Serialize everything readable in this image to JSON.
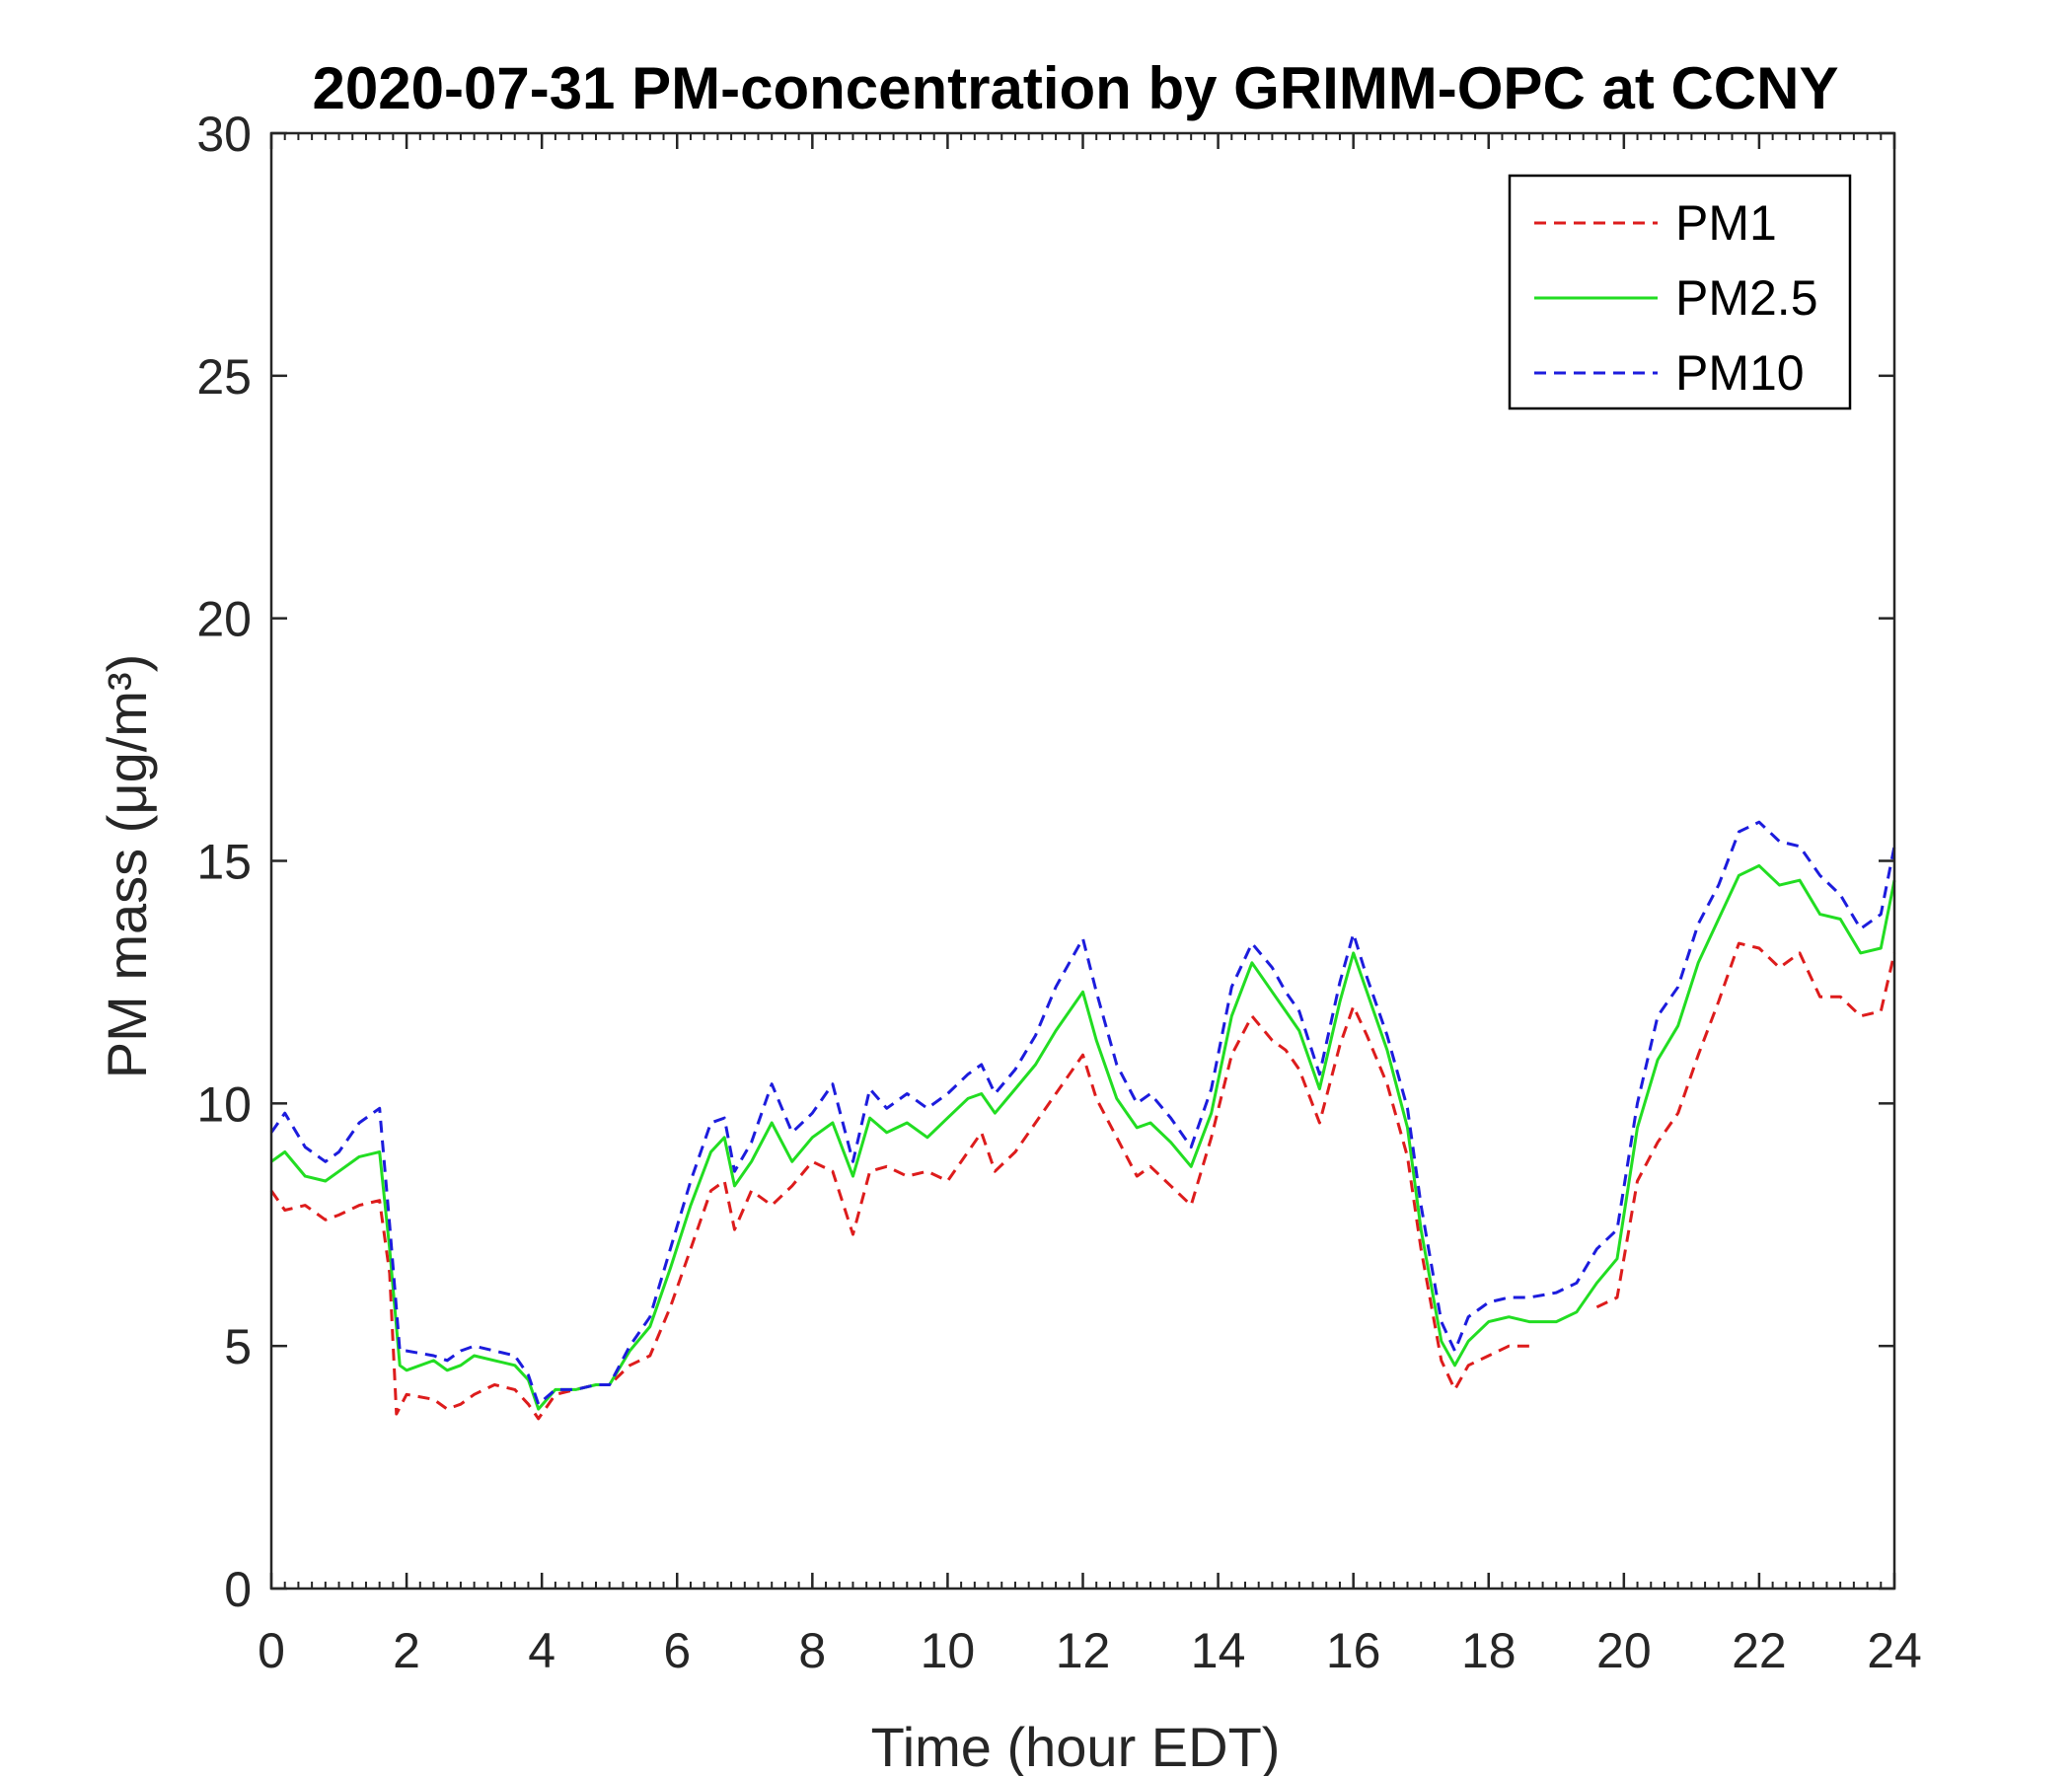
{
  "chart_data": {
    "type": "line",
    "title": "2020-07-31 PM-concentration by GRIMM-OPC at CCNY",
    "xlabel": "Time (hour EDT)",
    "ylabel": "PM mass (μg/m³)",
    "xlim": [
      0,
      24
    ],
    "ylim": [
      0,
      30
    ],
    "xticks": [
      "0",
      "2",
      "4",
      "6",
      "8",
      "10",
      "12",
      "14",
      "16",
      "18",
      "20",
      "22",
      "24"
    ],
    "yticks": [
      "0",
      "5",
      "10",
      "15",
      "20",
      "25",
      "30"
    ],
    "grid": false,
    "legend_position": "top-right",
    "series": [
      {
        "name": "PM1",
        "color": "#dd1c1c",
        "dash": "dashed",
        "x": [
          0,
          0.2,
          0.5,
          0.8,
          1.0,
          1.3,
          1.6,
          1.75,
          1.85,
          2.0,
          2.4,
          2.6,
          2.8,
          3.0,
          3.3,
          3.6,
          3.8,
          3.95,
          4.2,
          4.5,
          4.8,
          5.0,
          5.3,
          5.6,
          5.9,
          6.2,
          6.5,
          6.7,
          6.85,
          7.1,
          7.4,
          7.7,
          8.0,
          8.3,
          8.6,
          8.85,
          9.1,
          9.4,
          9.7,
          10.0,
          10.3,
          10.5,
          10.7,
          11.0,
          11.3,
          11.6,
          12.0,
          12.2,
          12.5,
          12.8,
          13.0,
          13.3,
          13.6,
          13.9,
          14.2,
          14.5,
          14.8,
          15.0,
          15.2,
          15.5,
          15.8,
          16.0,
          16.2,
          16.5,
          16.8,
          17.0,
          17.3,
          17.5,
          17.7,
          18.0,
          18.3,
          18.6,
          19.0,
          19.3,
          19.6,
          19.9,
          20.2,
          20.5,
          20.8,
          21.1,
          21.4,
          21.7,
          22.0,
          22.3,
          22.6,
          22.9,
          23.2,
          23.5,
          23.8,
          24.0
        ],
        "values": [
          8.2,
          7.8,
          7.9,
          7.6,
          7.7,
          7.9,
          8.0,
          6.5,
          3.6,
          4.0,
          3.9,
          3.7,
          3.8,
          4.0,
          4.2,
          4.1,
          3.8,
          3.5,
          4.0,
          4.1,
          4.2,
          4.2,
          4.6,
          4.8,
          5.8,
          7.0,
          8.2,
          8.4,
          7.4,
          8.2,
          7.9,
          8.3,
          8.8,
          8.6,
          7.3,
          8.6,
          8.7,
          8.5,
          8.6,
          8.4,
          9.0,
          9.4,
          8.6,
          9.0,
          9.6,
          10.2,
          11.0,
          10.1,
          9.3,
          8.5,
          8.7,
          8.3,
          7.9,
          9.3,
          11.0,
          11.8,
          11.3,
          11.1,
          10.7,
          9.6,
          11.2,
          12.0,
          11.4,
          10.4,
          8.9,
          7.0,
          4.7,
          4.1,
          4.6,
          4.8,
          5.0,
          5.0,
          null,
          null,
          5.8,
          6.0,
          8.4,
          9.2,
          9.8,
          11.0,
          12.1,
          13.3,
          13.2,
          12.8,
          13.1,
          12.2,
          12.2,
          11.8,
          11.9,
          13.1
        ]
      },
      {
        "name": "PM2.5",
        "color": "#22dd22",
        "dash": "solid",
        "x": [
          0,
          0.2,
          0.5,
          0.8,
          1.0,
          1.3,
          1.6,
          1.75,
          1.9,
          2.0,
          2.4,
          2.6,
          2.8,
          3.0,
          3.3,
          3.6,
          3.8,
          3.95,
          4.2,
          4.5,
          4.8,
          5.0,
          5.3,
          5.6,
          5.9,
          6.2,
          6.5,
          6.7,
          6.85,
          7.1,
          7.4,
          7.7,
          8.0,
          8.3,
          8.6,
          8.85,
          9.1,
          9.4,
          9.7,
          10.0,
          10.3,
          10.5,
          10.7,
          11.0,
          11.3,
          11.6,
          12.0,
          12.2,
          12.5,
          12.8,
          13.0,
          13.3,
          13.6,
          13.9,
          14.2,
          14.5,
          14.8,
          15.0,
          15.2,
          15.5,
          15.8,
          16.0,
          16.2,
          16.5,
          16.8,
          17.0,
          17.3,
          17.5,
          17.7,
          18.0,
          18.3,
          18.6,
          19.0,
          19.3,
          19.6,
          19.9,
          20.2,
          20.5,
          20.8,
          21.1,
          21.4,
          21.7,
          22.0,
          22.3,
          22.6,
          22.9,
          23.2,
          23.5,
          23.8,
          24.0
        ],
        "values": [
          8.8,
          9.0,
          8.5,
          8.4,
          8.6,
          8.9,
          9.0,
          7.0,
          4.6,
          4.5,
          4.7,
          4.5,
          4.6,
          4.8,
          4.7,
          4.6,
          4.3,
          3.7,
          4.1,
          4.1,
          4.2,
          4.2,
          4.9,
          5.4,
          6.6,
          7.9,
          9.0,
          9.3,
          8.3,
          8.8,
          9.6,
          8.8,
          9.3,
          9.6,
          8.5,
          9.7,
          9.4,
          9.6,
          9.3,
          9.7,
          10.1,
          10.2,
          9.8,
          10.3,
          10.8,
          11.5,
          12.3,
          11.3,
          10.1,
          9.5,
          9.6,
          9.2,
          8.7,
          9.8,
          11.8,
          12.9,
          12.3,
          11.9,
          11.5,
          10.3,
          12.1,
          13.1,
          12.3,
          11.1,
          9.5,
          7.4,
          5.1,
          4.6,
          5.1,
          5.5,
          5.6,
          5.5,
          5.5,
          5.7,
          6.3,
          6.8,
          9.5,
          10.9,
          11.6,
          12.9,
          13.8,
          14.7,
          14.9,
          14.5,
          14.6,
          13.9,
          13.8,
          13.1,
          13.2,
          14.6
        ]
      },
      {
        "name": "PM10",
        "color": "#1c1cdd",
        "dash": "dashed",
        "x": [
          0,
          0.2,
          0.5,
          0.8,
          1.0,
          1.3,
          1.6,
          1.75,
          1.9,
          2.0,
          2.4,
          2.6,
          2.8,
          3.0,
          3.3,
          3.6,
          3.8,
          3.95,
          4.2,
          4.5,
          4.8,
          5.0,
          5.3,
          5.6,
          5.9,
          6.2,
          6.5,
          6.7,
          6.85,
          7.1,
          7.4,
          7.7,
          8.0,
          8.3,
          8.6,
          8.85,
          9.1,
          9.4,
          9.7,
          10.0,
          10.3,
          10.5,
          10.7,
          11.0,
          11.3,
          11.6,
          12.0,
          12.2,
          12.5,
          12.8,
          13.0,
          13.3,
          13.6,
          13.9,
          14.2,
          14.5,
          14.8,
          15.0,
          15.2,
          15.5,
          15.8,
          16.0,
          16.2,
          16.5,
          16.8,
          17.0,
          17.3,
          17.5,
          17.7,
          18.0,
          18.3,
          18.6,
          19.0,
          19.3,
          19.6,
          19.9,
          20.2,
          20.5,
          20.8,
          21.1,
          21.4,
          21.7,
          22.0,
          22.3,
          22.6,
          22.9,
          23.2,
          23.5,
          23.8,
          24.0
        ],
        "values": [
          9.4,
          9.8,
          9.1,
          8.8,
          9.0,
          9.6,
          9.9,
          7.5,
          4.9,
          4.9,
          4.8,
          4.7,
          4.9,
          5.0,
          4.9,
          4.8,
          4.4,
          3.8,
          4.1,
          4.1,
          4.2,
          4.2,
          5.0,
          5.6,
          7.0,
          8.4,
          9.6,
          9.7,
          8.6,
          9.2,
          10.4,
          9.4,
          9.8,
          10.4,
          8.8,
          10.3,
          9.9,
          10.2,
          9.9,
          10.2,
          10.6,
          10.8,
          10.2,
          10.7,
          11.4,
          12.4,
          13.4,
          12.3,
          10.8,
          10.0,
          10.2,
          9.7,
          9.1,
          10.3,
          12.4,
          13.3,
          12.8,
          12.3,
          11.9,
          10.6,
          12.5,
          13.5,
          12.6,
          11.4,
          9.9,
          7.9,
          5.5,
          4.9,
          5.6,
          5.9,
          6.0,
          6.0,
          6.1,
          6.3,
          7.0,
          7.4,
          10.0,
          11.8,
          12.4,
          13.7,
          14.5,
          15.6,
          15.8,
          15.4,
          15.3,
          14.7,
          14.3,
          13.6,
          13.9,
          15.3
        ]
      }
    ]
  }
}
